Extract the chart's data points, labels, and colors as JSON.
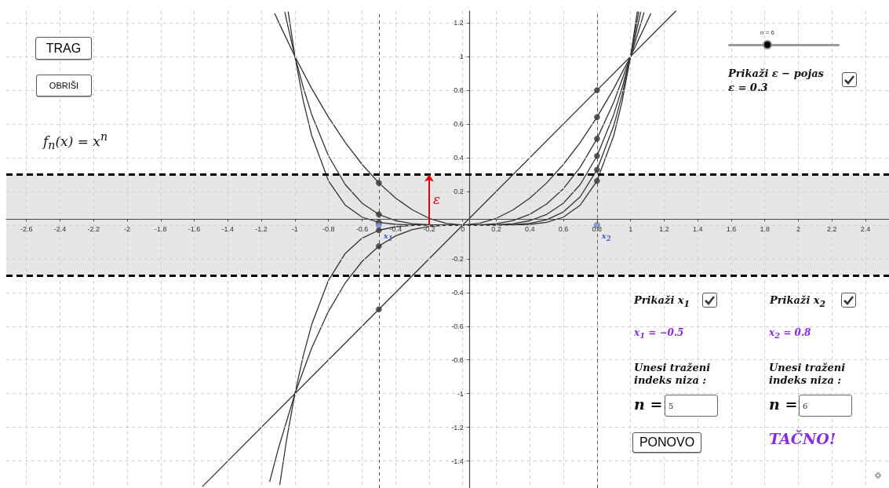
{
  "chart_data": {
    "type": "line",
    "xlim": [
      -2.72,
      2.54
    ],
    "ylim": [
      -1.56,
      1.27
    ],
    "xticks": [
      -2.6,
      -2.4,
      -2.2,
      -2,
      -1.8,
      -1.6,
      -1.4,
      -1.2,
      -1,
      -0.8,
      -0.6,
      -0.4,
      -0.2,
      0,
      0.2,
      0.4,
      0.6,
      0.8,
      1,
      1.2,
      1.4,
      1.6,
      1.8,
      2,
      2.2,
      2.4
    ],
    "yticks": [
      -1.4,
      -1.2,
      -1,
      -0.8,
      -0.6,
      -0.4,
      -0.2,
      {
        "value": 0,
        "label": null
      },
      0.2,
      0.4,
      0.6,
      0.8,
      1,
      1.2
    ],
    "grid": true,
    "marker": "none",
    "line_style": "solid",
    "series": [
      {
        "color": "#333333",
        "x": [
          -1.55,
          1.27
        ],
        "values": [
          -1.55,
          1.27
        ]
      },
      {
        "color": "#333333",
        "x": [
          -1.12,
          -1.1,
          -1,
          -0.9,
          -0.8,
          -0.7,
          -0.6,
          -0.5,
          -0.4,
          -0.3,
          -0.2,
          -0.1,
          0,
          0.1,
          0.2,
          0.3,
          0.4,
          0.5,
          0.6,
          0.7,
          0.8,
          0.9,
          1,
          1.1,
          1.12
        ],
        "values": [
          1.254,
          1.21,
          1,
          0.81,
          0.64,
          0.49,
          0.36,
          0.25,
          0.16,
          0.09,
          0.04,
          0.01,
          0,
          0.01,
          0.04,
          0.09,
          0.16,
          0.25,
          0.36,
          0.49,
          0.64,
          0.81,
          1,
          1.21,
          1.254
        ]
      },
      {
        "color": "#333333",
        "x": [
          -1.15,
          -1.1,
          -1,
          -0.9,
          -0.8,
          -0.7,
          -0.6,
          -0.5,
          -0.4,
          -0.3,
          -0.2,
          -0.1,
          0,
          0.1,
          0.2,
          0.3,
          0.4,
          0.5,
          0.6,
          0.7,
          0.8,
          0.9,
          1,
          1.05,
          1.08
        ],
        "values": [
          -1.521,
          -1.331,
          -1,
          -0.729,
          -0.512,
          -0.343,
          -0.216,
          -0.125,
          -0.064,
          -0.027,
          -0.008,
          -0.001,
          0,
          0.001,
          0.008,
          0.027,
          0.064,
          0.125,
          0.216,
          0.343,
          0.512,
          0.729,
          1,
          1.158,
          1.26
        ]
      },
      {
        "color": "#333333",
        "x": [
          -1.06,
          -1.05,
          -1,
          -0.95,
          -0.9,
          -0.8,
          -0.7,
          -0.6,
          -0.5,
          -0.4,
          -0.3,
          -0.2,
          -0.1,
          0,
          0.1,
          0.2,
          0.3,
          0.4,
          0.5,
          0.6,
          0.7,
          0.8,
          0.9,
          0.95,
          1,
          1.05,
          1.06
        ],
        "values": [
          1.262,
          1.216,
          1,
          0.815,
          0.656,
          0.41,
          0.24,
          0.13,
          0.063,
          0.026,
          0.008,
          0.002,
          0,
          0,
          0,
          0.002,
          0.008,
          0.026,
          0.063,
          0.13,
          0.24,
          0.41,
          0.656,
          0.815,
          1,
          1.216,
          1.262
        ]
      },
      {
        "color": "#333333",
        "x": [
          -1.09,
          -1.05,
          -1,
          -0.95,
          -0.9,
          -0.8,
          -0.7,
          -0.6,
          -0.5,
          -0.4,
          -0.3,
          -0.2,
          0,
          0.2,
          0.3,
          0.4,
          0.5,
          0.6,
          0.7,
          0.8,
          0.9,
          0.95,
          1,
          1.04,
          1.048
        ],
        "values": [
          -1.539,
          -1.276,
          -1,
          -0.774,
          -0.59,
          -0.328,
          -0.168,
          -0.078,
          -0.031,
          -0.01,
          -0.002,
          0,
          0,
          0,
          0.002,
          0.01,
          0.031,
          0.078,
          0.168,
          0.328,
          0.59,
          0.774,
          1,
          1.217,
          1.264
        ]
      },
      {
        "color": "#333333",
        "x": [
          -1.04,
          -1,
          -0.95,
          -0.9,
          -0.8,
          -0.7,
          -0.6,
          -0.5,
          -0.4,
          -0.3,
          -0.2,
          0,
          0.2,
          0.3,
          0.4,
          0.5,
          0.6,
          0.7,
          0.8,
          0.9,
          0.95,
          1,
          1.04
        ],
        "values": [
          1.265,
          1,
          0.735,
          0.531,
          0.262,
          0.118,
          0.047,
          0.016,
          0.004,
          0.001,
          0,
          0,
          0,
          0.001,
          0.004,
          0.016,
          0.047,
          0.118,
          0.262,
          0.531,
          0.735,
          1,
          1.265
        ]
      },
      {
        "type": "scatter",
        "color": "#333333",
        "marker": "circle",
        "x": [
          -0.5,
          -0.5,
          -0.5,
          -0.5,
          -0.5,
          -0.5,
          0.8,
          0.8,
          0.8,
          0.8,
          0.8,
          0.8
        ],
        "values": [
          -0.5,
          0.25,
          -0.125,
          0.063,
          -0.031,
          0.016,
          0.8,
          0.64,
          0.512,
          0.41,
          0.328,
          0.262
        ]
      },
      {
        "type": "scatter",
        "color": "#7b8fe8",
        "marker": "circle",
        "x": [
          -0.5,
          0.8
        ],
        "values": [
          0,
          0
        ]
      }
    ],
    "bands": [
      {
        "axis": "y",
        "from": -0.3,
        "to": 0.3,
        "color": "#e6e6e6"
      }
    ],
    "ref_lines": [
      {
        "axis": "y",
        "value": 0.3,
        "color": "#000000",
        "line_style": "dashed"
      },
      {
        "axis": "y",
        "value": -0.3,
        "color": "#000000",
        "line_style": "dashed"
      },
      {
        "axis": "x",
        "value": -0.5,
        "color": "#555555",
        "line_style": "dashed"
      },
      {
        "axis": "x",
        "value": 0.8,
        "color": "#555555",
        "line_style": "dashed"
      }
    ],
    "annotations": [
      "TRAG",
      "OBRIŠI",
      "f$_{n}$(x) = x$^{n}$",
      "n = 6",
      "Prikaži ε − pojas",
      "ε = 0.3",
      "Prikaži  x$_{1}$",
      "Prikaži  x$_{2}$",
      "x$_{1}$ = −0.5",
      "x$_{2}$ = 0.8",
      "Unesi traženi indeks niza :",
      "Unesi traženi indeks niza :",
      "n =",
      "5",
      "n =",
      "6",
      "PONOVO",
      "TAČNO!",
      {
        "text": "x$_{1}$",
        "x": -0.5,
        "y": 0
      },
      {
        "text": "x$_{2}$",
        "x": 0.8,
        "y": 0
      },
      {
        "text": "ε",
        "x": -0.2,
        "y": 0.3
      }
    ]
  }
}
